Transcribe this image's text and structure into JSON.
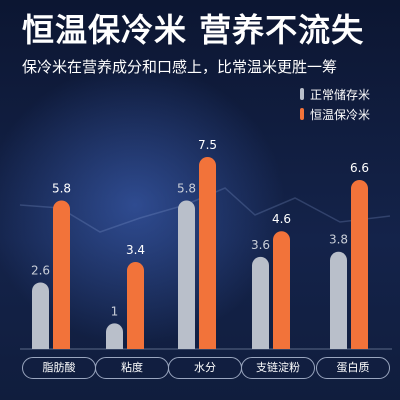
{
  "header": {
    "title": "恒温保冷米 营养不流失",
    "subtitle": "保冷米在营养成分和口感上，比常温米更胜一筹"
  },
  "colors": {
    "background": "#0b1530",
    "series_gray": "#b9bfca",
    "series_orange": "#f2733a"
  },
  "chart_data": {
    "type": "bar",
    "categories": [
      "脂肪酸",
      "粘度",
      "水分",
      "支链淀粉",
      "蛋白质"
    ],
    "series": [
      {
        "name": "正常储存米",
        "values": [
          2.6,
          1,
          5.8,
          3.6,
          3.8
        ]
      },
      {
        "name": "恒温保冷米",
        "values": [
          5.8,
          3.4,
          7.5,
          4.6,
          6.6
        ]
      }
    ],
    "ylim": [
      0,
      7.5
    ],
    "legend": "top-right",
    "grid": false
  }
}
